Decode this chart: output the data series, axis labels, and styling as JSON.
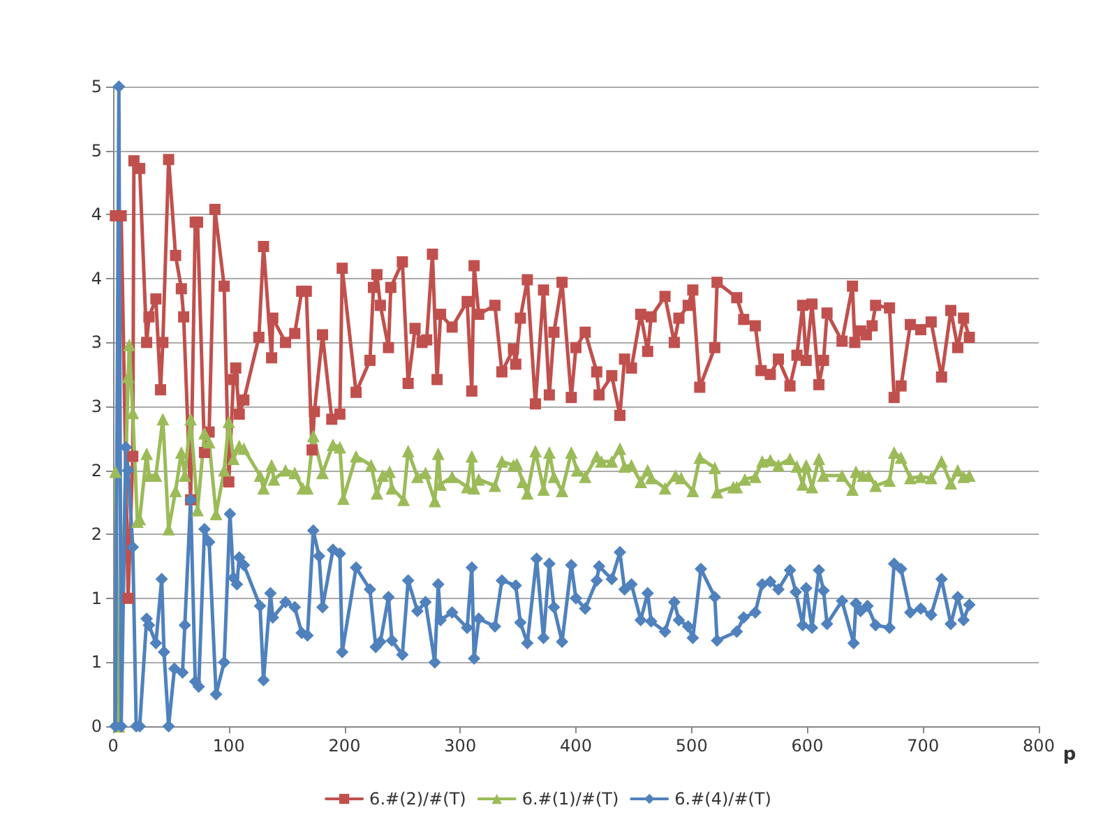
{
  "chart_data": {
    "type": "line",
    "xlabel": "p",
    "xlim": [
      0,
      800
    ],
    "xticks": [
      0,
      100,
      200,
      300,
      400,
      500,
      600,
      700,
      800
    ],
    "ylim": [
      0,
      5
    ],
    "yticks": [
      {
        "value": 0,
        "label": "0"
      },
      {
        "value": 0.5,
        "label": "1"
      },
      {
        "value": 1,
        "label": "1"
      },
      {
        "value": 1.5,
        "label": "2"
      },
      {
        "value": 2,
        "label": "2"
      },
      {
        "value": 2.5,
        "label": "3"
      },
      {
        "value": 3,
        "label": "3"
      },
      {
        "value": 3.5,
        "label": "4"
      },
      {
        "value": 4,
        "label": "4"
      },
      {
        "value": 4.5,
        "label": "5"
      },
      {
        "value": 5,
        "label": "5"
      }
    ],
    "grid": "y",
    "legend": "bottom",
    "line_style": "solid",
    "series": [
      {
        "name": "6.#(2)/#(T)",
        "color": "#c0504d",
        "marker": "square",
        "x": [
          2,
          7,
          13,
          17,
          18,
          23,
          29,
          31,
          37,
          41,
          43,
          48,
          54,
          59,
          61,
          67,
          71,
          73,
          79,
          83,
          88,
          96,
          100,
          104,
          106,
          109,
          113,
          126,
          130,
          137,
          138,
          149,
          157,
          163,
          167,
          172,
          174,
          181,
          189,
          196,
          198,
          210,
          222,
          225,
          228,
          231,
          238,
          240,
          250,
          255,
          261,
          267,
          271,
          276,
          280,
          283,
          293,
          306,
          310,
          312,
          316,
          330,
          336,
          346,
          348,
          352,
          358,
          365,
          372,
          377,
          381,
          388,
          396,
          400,
          408,
          418,
          420,
          431,
          438,
          442,
          448,
          456,
          462,
          465,
          477,
          485,
          489,
          497,
          501,
          507,
          520,
          522,
          539,
          545,
          555,
          560,
          568,
          575,
          585,
          591,
          596,
          599,
          604,
          610,
          614,
          617,
          630,
          639,
          641,
          646,
          651,
          656,
          659,
          671,
          675,
          681,
          689,
          698,
          707,
          716,
          724,
          730,
          735,
          740
        ],
        "values": [
          3.99,
          3.99,
          1.0,
          2.11,
          4.42,
          4.36,
          3.0,
          3.2,
          3.34,
          2.63,
          3.0,
          4.43,
          3.68,
          3.42,
          3.2,
          1.77,
          3.94,
          3.94,
          2.14,
          2.3,
          4.04,
          3.44,
          1.91,
          2.71,
          2.8,
          2.44,
          2.55,
          3.04,
          3.75,
          2.88,
          3.19,
          3.0,
          3.07,
          3.4,
          3.4,
          2.16,
          2.46,
          3.06,
          2.4,
          2.44,
          3.58,
          2.61,
          2.86,
          3.43,
          3.53,
          3.29,
          2.96,
          3.43,
          3.63,
          2.68,
          3.11,
          3.0,
          3.02,
          3.69,
          2.71,
          3.22,
          3.12,
          3.32,
          2.62,
          3.6,
          3.22,
          3.29,
          2.77,
          2.95,
          2.83,
          3.19,
          3.49,
          2.52,
          3.41,
          2.59,
          3.08,
          3.47,
          2.57,
          2.96,
          3.08,
          2.77,
          2.59,
          2.74,
          2.43,
          2.87,
          2.8,
          3.22,
          2.93,
          3.2,
          3.36,
          3.0,
          3.19,
          3.29,
          3.41,
          2.65,
          2.96,
          3.47,
          3.35,
          3.18,
          3.13,
          2.78,
          2.75,
          2.87,
          2.66,
          2.9,
          3.29,
          2.86,
          3.3,
          2.67,
          2.86,
          3.23,
          3.01,
          3.44,
          3.0,
          3.09,
          3.06,
          3.13,
          3.29,
          3.27,
          2.57,
          2.66,
          3.14,
          3.1,
          3.16,
          2.73,
          3.25,
          2.96,
          3.19,
          3.04
        ]
      },
      {
        "name": "6.#(1)/#(T)",
        "color": "#9bbb59",
        "marker": "triangle",
        "x": [
          2,
          5,
          13,
          14,
          17,
          21,
          23,
          29,
          31,
          37,
          43,
          48,
          54,
          59,
          62,
          67,
          73,
          79,
          83,
          89,
          96,
          100,
          104,
          109,
          113,
          127,
          130,
          137,
          139,
          149,
          157,
          164,
          168,
          173,
          181,
          190,
          196,
          199,
          210,
          223,
          228,
          233,
          239,
          241,
          251,
          255,
          263,
          270,
          278,
          281,
          283,
          293,
          306,
          310,
          312,
          316,
          330,
          336,
          346,
          349,
          354,
          358,
          365,
          372,
          377,
          381,
          388,
          396,
          401,
          408,
          418,
          422,
          431,
          438,
          442,
          448,
          456,
          462,
          465,
          477,
          486,
          491,
          501,
          507,
          520,
          522,
          536,
          539,
          546,
          555,
          561,
          568,
          575,
          585,
          591,
          596,
          599,
          604,
          610,
          614,
          630,
          639,
          642,
          648,
          653,
          659,
          671,
          675,
          681,
          689,
          698,
          707,
          716,
          724,
          730,
          735,
          740
        ],
        "values": [
          1.99,
          0,
          2.73,
          2.98,
          2.45,
          1.6,
          1.62,
          2.13,
          1.96,
          1.96,
          2.4,
          1.54,
          1.84,
          2.14,
          1.96,
          2.4,
          1.69,
          2.29,
          2.22,
          1.66,
          2.0,
          2.38,
          2.09,
          2.19,
          2.17,
          1.96,
          1.86,
          2.04,
          1.93,
          2.0,
          1.98,
          1.86,
          1.86,
          2.27,
          1.98,
          2.2,
          2.18,
          1.78,
          2.11,
          2.04,
          1.82,
          1.96,
          1.99,
          1.86,
          1.77,
          2.15,
          1.95,
          1.98,
          1.76,
          2.13,
          1.89,
          1.95,
          1.87,
          2.11,
          1.86,
          1.93,
          1.88,
          2.07,
          2.04,
          2.05,
          1.91,
          1.82,
          2.15,
          1.85,
          2.14,
          1.95,
          1.84,
          2.14,
          2.0,
          1.95,
          2.11,
          2.07,
          2.07,
          2.17,
          2.03,
          2.04,
          1.91,
          2.0,
          1.94,
          1.86,
          1.96,
          1.94,
          1.84,
          2.1,
          2.02,
          1.83,
          1.87,
          1.87,
          1.93,
          1.95,
          2.07,
          2.08,
          2.04,
          2.09,
          2.03,
          1.89,
          2.04,
          1.87,
          2.09,
          1.96,
          1.96,
          1.85,
          1.99,
          1.96,
          1.96,
          1.88,
          1.92,
          2.14,
          2.1,
          1.94,
          1.95,
          1.94,
          2.07,
          1.9,
          2.0,
          1.95,
          1.96
        ]
      },
      {
        "name": "6.#(4)/#(T)",
        "color": "#4f81bd",
        "marker": "diamond",
        "x": [
          2,
          5,
          7,
          11,
          13,
          17,
          20,
          23,
          29,
          31,
          37,
          42,
          44,
          48,
          53,
          60,
          62,
          67,
          71,
          74,
          79,
          83,
          89,
          96,
          101,
          104,
          107,
          109,
          113,
          127,
          130,
          136,
          138,
          149,
          157,
          163,
          168,
          173,
          178,
          181,
          190,
          196,
          198,
          210,
          222,
          227,
          231,
          238,
          241,
          250,
          255,
          263,
          270,
          278,
          281,
          283,
          293,
          306,
          310,
          312,
          316,
          330,
          336,
          348,
          352,
          358,
          366,
          372,
          377,
          381,
          388,
          396,
          400,
          408,
          418,
          420,
          431,
          438,
          442,
          448,
          456,
          462,
          465,
          477,
          485,
          489,
          497,
          501,
          508,
          520,
          522,
          539,
          545,
          555,
          561,
          568,
          575,
          585,
          590,
          596,
          599,
          604,
          610,
          614,
          617,
          630,
          640,
          642,
          646,
          652,
          659,
          671,
          675,
          681,
          689,
          698,
          707,
          716,
          724,
          730,
          735,
          740
        ],
        "values": [
          0,
          5,
          0,
          2.18,
          2.0,
          1.4,
          0,
          0,
          0.84,
          0.79,
          0.65,
          1.15,
          0.58,
          0,
          0.45,
          0.42,
          0.79,
          1.77,
          0.35,
          0.31,
          1.54,
          1.44,
          0.25,
          0.5,
          1.66,
          1.16,
          1.11,
          1.32,
          1.26,
          0.94,
          0.36,
          1.04,
          0.85,
          0.97,
          0.93,
          0.73,
          0.71,
          1.53,
          1.33,
          0.93,
          1.38,
          1.35,
          0.58,
          1.24,
          1.07,
          0.62,
          0.66,
          1.01,
          0.67,
          0.56,
          1.14,
          0.9,
          0.97,
          0.5,
          1.11,
          0.83,
          0.89,
          0.77,
          1.24,
          0.53,
          0.84,
          0.78,
          1.14,
          1.1,
          0.81,
          0.65,
          1.31,
          0.69,
          1.27,
          0.93,
          0.66,
          1.26,
          1.0,
          0.92,
          1.14,
          1.25,
          1.15,
          1.36,
          1.07,
          1.11,
          0.83,
          1.04,
          0.82,
          0.74,
          0.97,
          0.83,
          0.78,
          0.69,
          1.23,
          1.01,
          0.67,
          0.74,
          0.85,
          0.89,
          1.11,
          1.13,
          1.07,
          1.22,
          1.05,
          0.79,
          1.08,
          0.77,
          1.22,
          1.06,
          0.8,
          0.98,
          0.65,
          0.96,
          0.9,
          0.94,
          0.79,
          0.77,
          1.27,
          1.23,
          0.89,
          0.92,
          0.87,
          1.15,
          0.8,
          1.01,
          0.83,
          0.95
        ]
      }
    ]
  }
}
